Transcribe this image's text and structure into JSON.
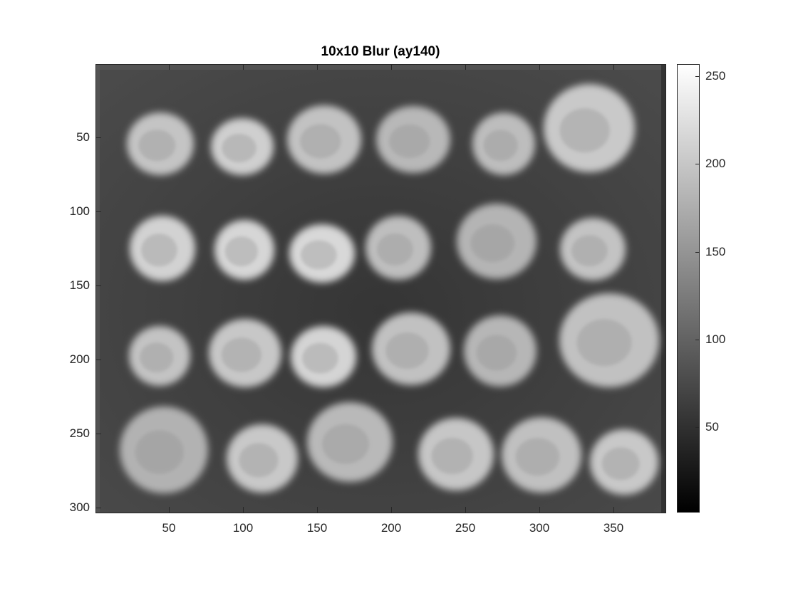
{
  "figure": {
    "title": "10x10 Blur (ay140)",
    "x_ticks": [
      "50",
      "100",
      "150",
      "200",
      "250",
      "300",
      "350"
    ],
    "y_ticks": [
      "50",
      "100",
      "150",
      "200",
      "250",
      "300"
    ],
    "colorbar_ticks": [
      "250",
      "200",
      "150",
      "100",
      "50"
    ],
    "colormap": "gray",
    "image_content": "blurred grayscale photograph of 24 coins arranged in 4 rows on dark background"
  }
}
